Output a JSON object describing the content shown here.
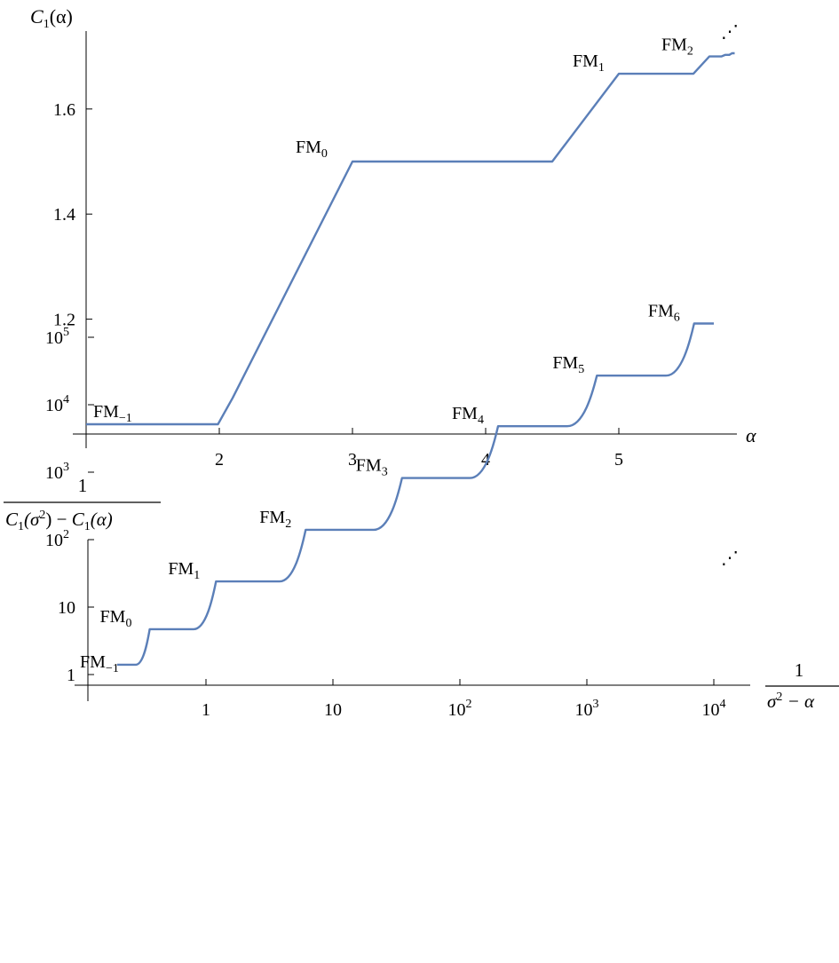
{
  "chart_data": [
    {
      "type": "line",
      "xlabel": "α",
      "ylabel": "C1(α)",
      "ylabel_parts": {
        "main": "C",
        "sub": "1",
        "arg": "(α)"
      },
      "xlim": [
        1.0,
        6.0
      ],
      "ylim": [
        1.0,
        1.7
      ],
      "x_ticks": [
        2,
        3,
        4,
        5
      ],
      "x_tick_labels": [
        "2",
        "3",
        "4",
        "5"
      ],
      "y_ticks": [
        1.2,
        1.4,
        1.6
      ],
      "y_tick_labels": [
        "1.2",
        "1.4",
        "1.6"
      ],
      "color": "#5b7fb8",
      "grid": false,
      "series": [
        {
          "x": [
            1.0,
            1.99,
            2.1,
            3.0,
            4.5,
            5.0,
            5.56,
            5.68,
            5.77,
            5.8,
            5.83,
            5.85,
            5.87
          ],
          "y": [
            1.0,
            1.0,
            1.05,
            1.5,
            1.5,
            1.667,
            1.667,
            1.7,
            1.7,
            1.703,
            1.703,
            1.706,
            1.706
          ]
        }
      ],
      "annotations": [
        {
          "base": "FM",
          "sub": "−1",
          "x": 1.0,
          "y": 1.0
        },
        {
          "base": "FM",
          "sub": "0",
          "x": 3.0,
          "y": 1.5
        },
        {
          "base": "FM",
          "sub": "1",
          "x": 5.0,
          "y": 1.667
        },
        {
          "base": "FM",
          "sub": "2",
          "x": 5.68,
          "y": 1.7
        }
      ],
      "continuation": "⋰"
    },
    {
      "type": "line",
      "log_x": true,
      "log_y": true,
      "xlabel_num": "1",
      "xlabel_den": "σ2 − α",
      "xlabel_parts": {
        "num": "1",
        "den_main": "σ",
        "den_sup": "2",
        "den_tail": " − α"
      },
      "ylabel_num": "1",
      "ylabel_den": "C1(σ2) − C1(α)",
      "ylabel_parts": {
        "num": "1",
        "c": "C",
        "sub": "1",
        "open": "(σ",
        "sup": "2",
        "close": ") − ",
        "c2": "C",
        "sub2": "1",
        "tail": "(α)"
      },
      "xlim": [
        0.166,
        11000
      ],
      "ylim": [
        0.7,
        400000
      ],
      "x_ticks": [
        1,
        10,
        100,
        1000,
        10000
      ],
      "x_tick_labels": [
        {
          "base": "1",
          "exp": ""
        },
        {
          "base": "10",
          "exp": ""
        },
        {
          "base": "10",
          "exp": "2"
        },
        {
          "base": "10",
          "exp": "3"
        },
        {
          "base": "10",
          "exp": "4"
        }
      ],
      "y_ticks": [
        1,
        10,
        100,
        1000,
        10000,
        100000
      ],
      "y_tick_labels": [
        {
          "base": "1",
          "exp": ""
        },
        {
          "base": "10",
          "exp": ""
        },
        {
          "base": "10",
          "exp": "2"
        },
        {
          "base": "10",
          "exp": "3"
        },
        {
          "base": "10",
          "exp": "4"
        },
        {
          "base": "10",
          "exp": "5"
        }
      ],
      "color": "#5b7fb8",
      "grid": false,
      "series": [
        {
          "x": [
            0.2,
            0.28,
            0.36,
            0.8,
            1.2,
            3.8,
            6.1,
            21,
            35,
            120,
            200,
            700,
            1200,
            4200,
            7000,
            10000
          ],
          "y": [
            1.4,
            1.4,
            4.7,
            4.7,
            24,
            24,
            140,
            140,
            820,
            820,
            4800,
            4800,
            27000,
            27000,
            160000,
            160000
          ]
        }
      ],
      "annotations": [
        {
          "base": "FM",
          "sub": "−1",
          "x": 0.2,
          "y": 1.4
        },
        {
          "base": "FM",
          "sub": "0",
          "x": 0.36,
          "y": 4.7
        },
        {
          "base": "FM",
          "sub": "1",
          "x": 1.2,
          "y": 24
        },
        {
          "base": "FM",
          "sub": "2",
          "x": 6.1,
          "y": 140
        },
        {
          "base": "FM",
          "sub": "3",
          "x": 35,
          "y": 820
        },
        {
          "base": "FM",
          "sub": "4",
          "x": 200,
          "y": 4800
        },
        {
          "base": "FM",
          "sub": "5",
          "x": 1200,
          "y": 27000
        },
        {
          "base": "FM",
          "sub": "6",
          "x": 7000,
          "y": 160000
        }
      ],
      "continuation": "⋰"
    }
  ]
}
